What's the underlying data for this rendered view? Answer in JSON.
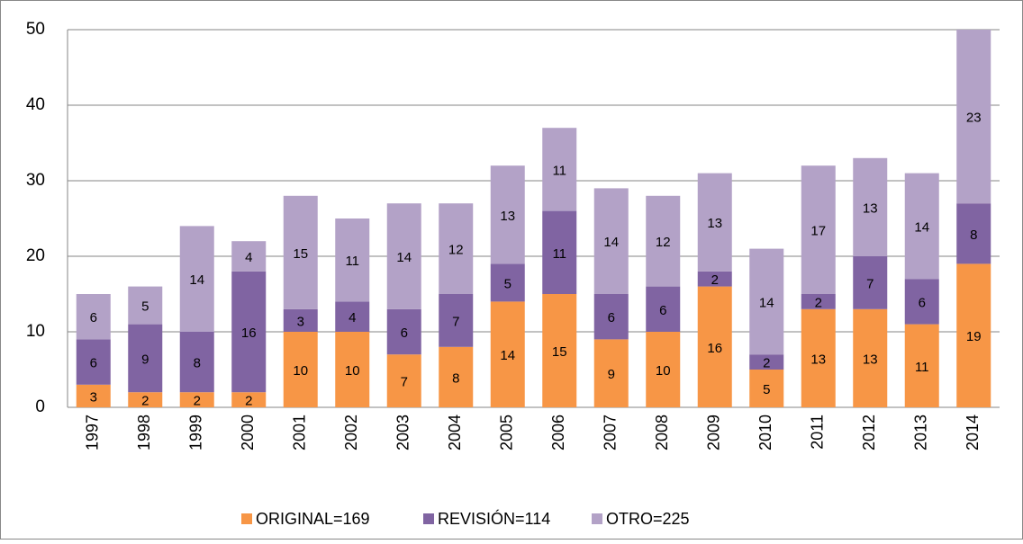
{
  "chart_data": {
    "type": "stacked_bar",
    "categories": [
      "1997",
      "1998",
      "1999",
      "2000",
      "2001",
      "2002",
      "2003",
      "2004",
      "2005",
      "2006",
      "2007",
      "2008",
      "2009",
      "2010",
      "2011",
      "2012",
      "2013",
      "2014"
    ],
    "series": [
      {
        "name": "ORIGINAL=169",
        "color": "#f79646",
        "values": [
          3,
          2,
          2,
          2,
          10,
          10,
          7,
          8,
          14,
          15,
          9,
          10,
          16,
          5,
          13,
          13,
          11,
          19
        ]
      },
      {
        "name": "REVISIÓN=114",
        "color": "#8064a2",
        "values": [
          6,
          9,
          8,
          16,
          3,
          4,
          6,
          7,
          5,
          11,
          6,
          6,
          2,
          2,
          2,
          7,
          6,
          8
        ]
      },
      {
        "name": "OTRO=225",
        "color": "#b3a2c7",
        "values": [
          6,
          5,
          14,
          4,
          15,
          11,
          14,
          12,
          13,
          11,
          14,
          12,
          13,
          14,
          17,
          13,
          14,
          23
        ]
      }
    ],
    "ylim": [
      0,
      50
    ],
    "yticks": [
      0,
      10,
      20,
      30,
      40,
      50
    ],
    "grid": true,
    "legend": "bottom"
  }
}
